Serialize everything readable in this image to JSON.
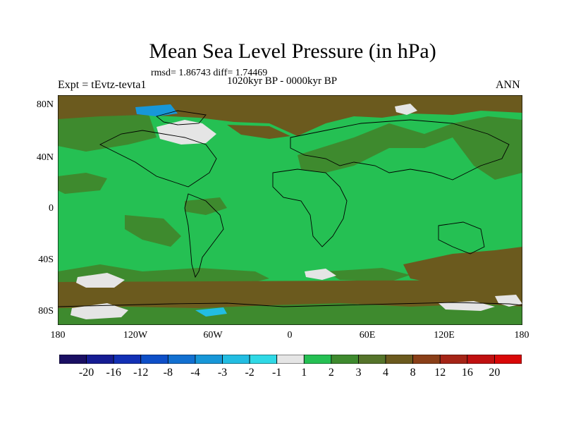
{
  "title": "Mean Sea Level Pressure (in hPa)",
  "stats": "rmsd= 1.86743 diff= 1.74469",
  "period": "1020kyr BP - 0000kyr BP",
  "experiment": "Expt = tEvtz-tevta1",
  "season": "ANN",
  "lat_labels": [
    "80N",
    "40N",
    "0",
    "40S",
    "80S"
  ],
  "lon_labels": [
    "180",
    "120W",
    "60W",
    "0",
    "60E",
    "120E",
    "180"
  ],
  "colorbar": {
    "labels": [
      "-20",
      "-16",
      "-12",
      "-8",
      "-4",
      "-3",
      "-2",
      "-1",
      "1",
      "2",
      "3",
      "4",
      "8",
      "12",
      "16",
      "20"
    ],
    "colors": [
      "#1a0f63",
      "#151c93",
      "#1230b5",
      "#0e4fc8",
      "#1270d1",
      "#1797d8",
      "#22bde2",
      "#2fd9e6",
      "#e5e5e5",
      "#25c053",
      "#3e8a2e",
      "#55742a",
      "#6b5a1e",
      "#8a3f18",
      "#a52416",
      "#c01010",
      "#d90808"
    ]
  }
}
